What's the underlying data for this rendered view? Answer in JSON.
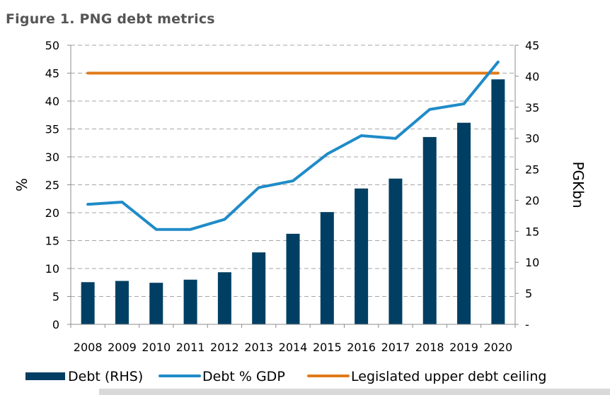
{
  "title": "Figure 1. PNG debt metrics",
  "colors": {
    "bar": "#003f63",
    "line_gdp": "#1f8bc8",
    "line_ceiling": "#e07b1a",
    "grid": "#a6a6a6"
  },
  "chart_data": {
    "type": "bar",
    "categories": [
      "2008",
      "2009",
      "2010",
      "2011",
      "2012",
      "2013",
      "2014",
      "2015",
      "2016",
      "2017",
      "2018",
      "2019",
      "2020"
    ],
    "series": [
      {
        "name": "Debt (RHS)",
        "type": "bar",
        "axis": "right",
        "values": [
          6.8,
          7.0,
          6.7,
          7.2,
          8.4,
          11.6,
          14.6,
          18.1,
          21.9,
          23.5,
          30.2,
          32.5,
          39.5
        ]
      },
      {
        "name": "Debt % GDP",
        "type": "line",
        "axis": "left",
        "values": [
          21.5,
          21.9,
          17.0,
          17.0,
          18.8,
          24.5,
          25.7,
          30.5,
          33.8,
          33.3,
          38.5,
          39.5,
          47.0
        ]
      },
      {
        "name": "Legislated upper debt ceiling",
        "type": "line",
        "axis": "left",
        "values": [
          45,
          45,
          45,
          45,
          45,
          45,
          45,
          45,
          45,
          45,
          45,
          45,
          45
        ]
      }
    ],
    "ylabel": "%",
    "y2label": "PGKbn",
    "ylim": [
      0,
      50
    ],
    "y2lim": [
      0,
      45
    ],
    "yticks": [
      "0",
      "5",
      "10",
      "15",
      "20",
      "25",
      "30",
      "35",
      "40",
      "45",
      "50"
    ],
    "y2ticks": [
      "-",
      "5",
      "10",
      "15",
      "20",
      "25",
      "30",
      "35",
      "40",
      "45"
    ],
    "grid": true,
    "legend": "bottom"
  }
}
